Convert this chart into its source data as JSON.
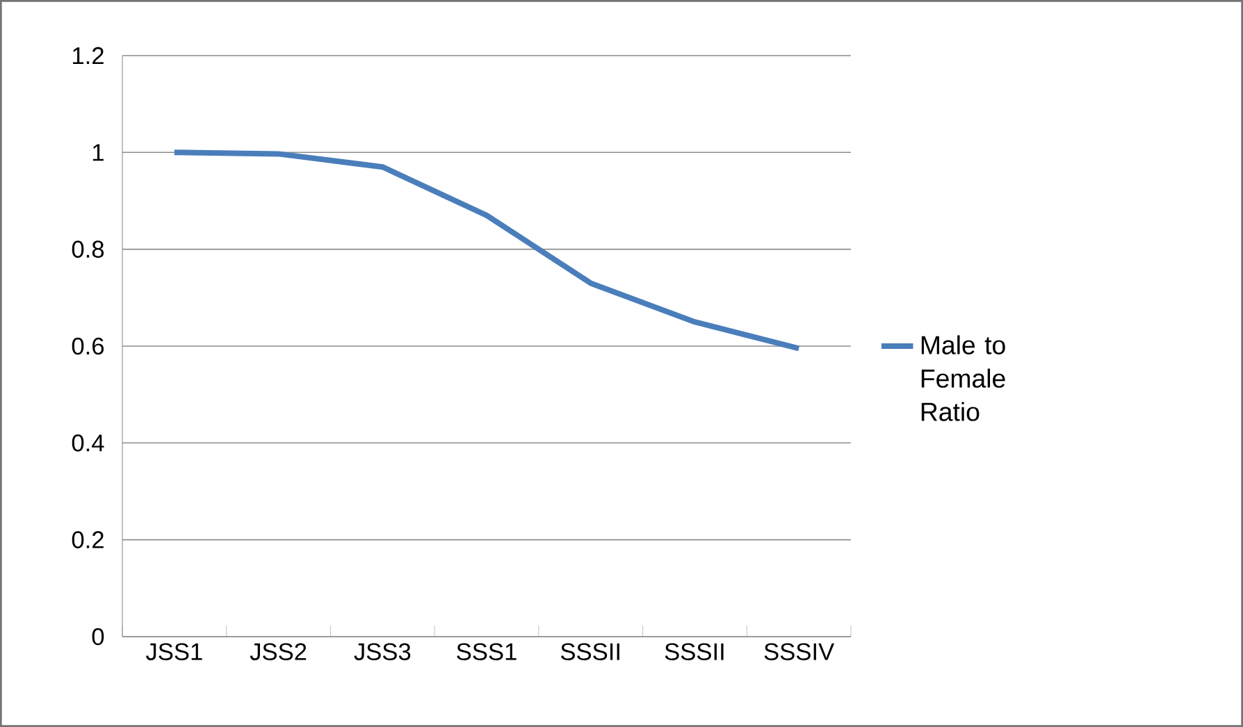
{
  "chart_data": {
    "type": "line",
    "categories": [
      "JSS1",
      "JSS2",
      "JSS3",
      "SSS1",
      "SSSII",
      "SSSII",
      "SSSIV"
    ],
    "series": [
      {
        "name": "Male to Female Ratio",
        "color": "#4a7ebb",
        "values": [
          1.0,
          0.997,
          0.97,
          0.87,
          0.73,
          0.65,
          0.595
        ]
      }
    ],
    "ylim": [
      0,
      1.2
    ],
    "yticks": [
      0,
      0.2,
      0.4,
      0.6,
      0.8,
      1,
      1.2
    ],
    "grid": "y",
    "legend": "right",
    "marker": "none",
    "line_style": "solid"
  }
}
